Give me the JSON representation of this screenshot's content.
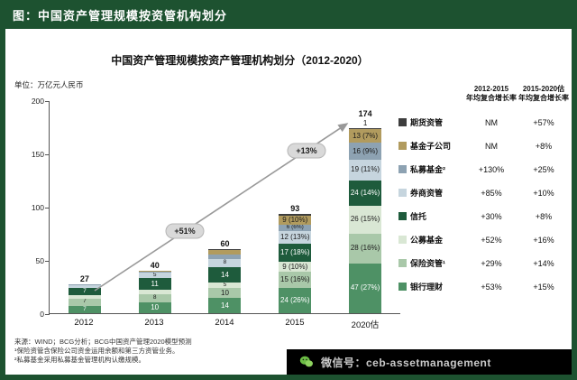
{
  "header": {
    "title": "图：中国资产管理规模按资管机构划分"
  },
  "chart": {
    "title": "中国资产管理规模按资产管理机构划分（2012-2020）",
    "unit_label": "单位：万亿元人民币",
    "y_axis": {
      "min": 0,
      "max": 200,
      "ticks": [
        200,
        150,
        100,
        50,
        0
      ]
    }
  },
  "chart_data": {
    "type": "bar",
    "stacked": true,
    "unit": "万亿元人民币",
    "categories": [
      "2012",
      "2013",
      "2014",
      "2015",
      "2020估"
    ],
    "totals": [
      27,
      40,
      60,
      93,
      174
    ],
    "total_labels": [
      "27",
      "40",
      "60",
      "93",
      "174"
    ],
    "above_labels": [
      "",
      "",
      "",
      "",
      "1"
    ],
    "ylim": [
      0,
      200
    ],
    "overall_cagr": [
      {
        "period": "2012-2015",
        "label": "+51%"
      },
      {
        "period": "2015-2020",
        "label": "+13%"
      }
    ],
    "series": [
      {
        "name": "银行理财",
        "color": "#4e9165",
        "text_color": "#ffffff",
        "values": [
          7,
          10,
          14,
          24,
          47
        ],
        "labels": [
          "7",
          "10",
          "14",
          "24 (26%)",
          "47 (27%)"
        ],
        "cagr_2012_2015": "+53%",
        "cagr_2015_2020": "+15%"
      },
      {
        "name": "保险资管¹",
        "color": "#a9c8a9",
        "text_color": "#1b1b1b",
        "values": [
          7,
          8,
          10,
          15,
          28
        ],
        "labels": [
          "7",
          "8",
          "10",
          "15 (16%)",
          "28 (16%)"
        ],
        "cagr_2012_2015": "+29%",
        "cagr_2015_2020": "+14%"
      },
      {
        "name": "公募基金",
        "color": "#d9e7d4",
        "text_color": "#1b1b1b",
        "values": [
          3,
          4,
          5,
          9,
          26
        ],
        "labels": [
          "3",
          "4",
          "5",
          "9 (10%)",
          "26 (15%)"
        ],
        "cagr_2012_2015": "+52%",
        "cagr_2015_2020": "+16%"
      },
      {
        "name": "信托",
        "color": "#1e5b3c",
        "text_color": "#ffffff",
        "values": [
          7,
          11,
          14,
          17,
          24
        ],
        "labels": [
          "7",
          "11",
          "14",
          "17 (18%)",
          "24 (14%)"
        ],
        "cagr_2012_2015": "+30%",
        "cagr_2015_2020": "+8%"
      },
      {
        "name": "券商资管",
        "color": "#c6d5de",
        "text_color": "#1b1b1b",
        "values": [
          2,
          5,
          8,
          12,
          19
        ],
        "labels": [
          "2",
          "5",
          "8",
          "12 (13%)",
          "19 (11%)"
        ],
        "cagr_2012_2015": "+85%",
        "cagr_2015_2020": "+10%"
      },
      {
        "name": "私募基金²",
        "color": "#8da2b2",
        "text_color": "#1b1b1b",
        "values": [
          1,
          1,
          4,
          6,
          16
        ],
        "labels": [
          "1",
          "1",
          "4",
          "6 (6%)",
          "16 (9%)"
        ],
        "cagr_2012_2015": "+130%",
        "cagr_2015_2020": "+25%"
      },
      {
        "name": "基金子公司",
        "color": "#b19b5e",
        "text_color": "#1b1b1b",
        "values": [
          0,
          1,
          4,
          9,
          13
        ],
        "labels": [
          "",
          "1",
          "4",
          "9 (10%)",
          "13 (7%)"
        ],
        "cagr_2012_2015": "NM",
        "cagr_2015_2020": "+8%"
      },
      {
        "name": "期货资管",
        "color": "#3d3d3d",
        "text_color": "#ffffff",
        "values": [
          0,
          0,
          1,
          1,
          1
        ],
        "labels": [
          "",
          "",
          "",
          "",
          ""
        ],
        "cagr_2012_2015": "NM",
        "cagr_2015_2020": "+57%"
      }
    ]
  },
  "legend": {
    "col1_line1": "2012-2015",
    "col1_line2": "年均复合增长率",
    "col2_line1": "2015-2020估",
    "col2_line2": "年均复合增长率"
  },
  "footer": {
    "sources": [
      "来源：WIND；BCG分析；BCG中国资产管理2020模型预测",
      "¹保险资管含保险公司资金运用余额和第三方资管业务。",
      "²私募基金采用私募基金管理机构认缴规模。"
    ],
    "wechat_label": "微信号：ceb-assetmanagement"
  },
  "colors": {
    "frame_green": "#1d5230",
    "arrow_gray": "#999999",
    "bubble_bg": "#d9d9d9",
    "footer_bar": "#000000",
    "wechat_green": "#6cbd45"
  }
}
